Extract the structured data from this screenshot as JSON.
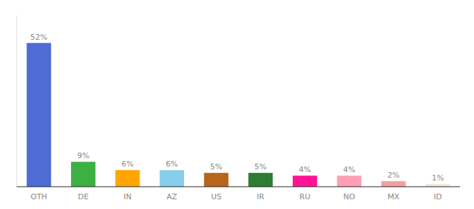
{
  "chart_data": {
    "type": "bar",
    "categories": [
      "OTH",
      "DE",
      "IN",
      "AZ",
      "US",
      "IR",
      "RU",
      "NO",
      "MX",
      "ID"
    ],
    "values": [
      52,
      9,
      6,
      6,
      5,
      5,
      4,
      4,
      2,
      1
    ],
    "colors": [
      "#4f6cd4",
      "#3cb043",
      "#ffa500",
      "#87ceeb",
      "#b8651a",
      "#2e7d32",
      "#ff1493",
      "#ff9eb5",
      "#f4a0a0",
      "#f0ead6"
    ],
    "value_labels": [
      "52%",
      "9%",
      "6%",
      "6%",
      "5%",
      "5%",
      "4%",
      "4%",
      "2%",
      "1%"
    ],
    "ylim": [
      0,
      62
    ],
    "data_labels": true,
    "tick_labels": "x"
  }
}
